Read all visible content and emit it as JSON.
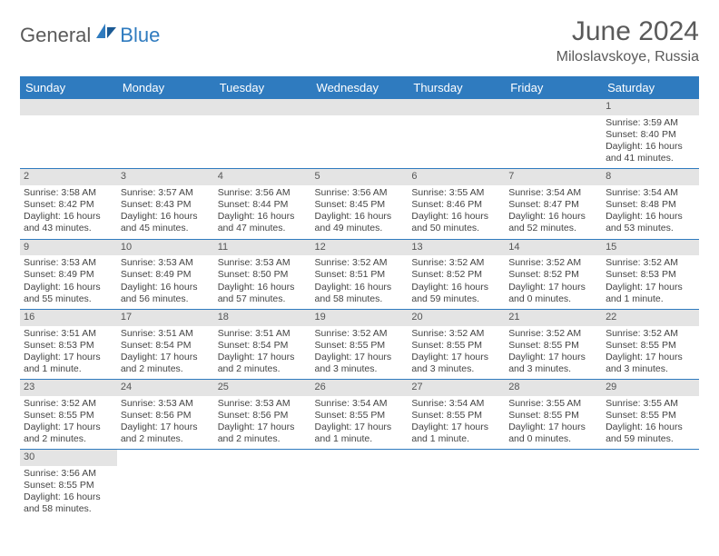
{
  "logo": {
    "part1": "General",
    "part2": "Blue"
  },
  "title": "June 2024",
  "location": "Miloslavskoye, Russia",
  "colors": {
    "header_bg": "#2f7bbf",
    "header_fg": "#ffffff",
    "daybar_bg": "#e4e4e4",
    "row_border": "#2f7bbf",
    "text": "#444444"
  },
  "weekdays": [
    "Sunday",
    "Monday",
    "Tuesday",
    "Wednesday",
    "Thursday",
    "Friday",
    "Saturday"
  ],
  "weeks": [
    [
      null,
      null,
      null,
      null,
      null,
      null,
      {
        "n": "1",
        "sr": "Sunrise: 3:59 AM",
        "ss": "Sunset: 8:40 PM",
        "dl": "Daylight: 16 hours and 41 minutes."
      }
    ],
    [
      {
        "n": "2",
        "sr": "Sunrise: 3:58 AM",
        "ss": "Sunset: 8:42 PM",
        "dl": "Daylight: 16 hours and 43 minutes."
      },
      {
        "n": "3",
        "sr": "Sunrise: 3:57 AM",
        "ss": "Sunset: 8:43 PM",
        "dl": "Daylight: 16 hours and 45 minutes."
      },
      {
        "n": "4",
        "sr": "Sunrise: 3:56 AM",
        "ss": "Sunset: 8:44 PM",
        "dl": "Daylight: 16 hours and 47 minutes."
      },
      {
        "n": "5",
        "sr": "Sunrise: 3:56 AM",
        "ss": "Sunset: 8:45 PM",
        "dl": "Daylight: 16 hours and 49 minutes."
      },
      {
        "n": "6",
        "sr": "Sunrise: 3:55 AM",
        "ss": "Sunset: 8:46 PM",
        "dl": "Daylight: 16 hours and 50 minutes."
      },
      {
        "n": "7",
        "sr": "Sunrise: 3:54 AM",
        "ss": "Sunset: 8:47 PM",
        "dl": "Daylight: 16 hours and 52 minutes."
      },
      {
        "n": "8",
        "sr": "Sunrise: 3:54 AM",
        "ss": "Sunset: 8:48 PM",
        "dl": "Daylight: 16 hours and 53 minutes."
      }
    ],
    [
      {
        "n": "9",
        "sr": "Sunrise: 3:53 AM",
        "ss": "Sunset: 8:49 PM",
        "dl": "Daylight: 16 hours and 55 minutes."
      },
      {
        "n": "10",
        "sr": "Sunrise: 3:53 AM",
        "ss": "Sunset: 8:49 PM",
        "dl": "Daylight: 16 hours and 56 minutes."
      },
      {
        "n": "11",
        "sr": "Sunrise: 3:53 AM",
        "ss": "Sunset: 8:50 PM",
        "dl": "Daylight: 16 hours and 57 minutes."
      },
      {
        "n": "12",
        "sr": "Sunrise: 3:52 AM",
        "ss": "Sunset: 8:51 PM",
        "dl": "Daylight: 16 hours and 58 minutes."
      },
      {
        "n": "13",
        "sr": "Sunrise: 3:52 AM",
        "ss": "Sunset: 8:52 PM",
        "dl": "Daylight: 16 hours and 59 minutes."
      },
      {
        "n": "14",
        "sr": "Sunrise: 3:52 AM",
        "ss": "Sunset: 8:52 PM",
        "dl": "Daylight: 17 hours and 0 minutes."
      },
      {
        "n": "15",
        "sr": "Sunrise: 3:52 AM",
        "ss": "Sunset: 8:53 PM",
        "dl": "Daylight: 17 hours and 1 minute."
      }
    ],
    [
      {
        "n": "16",
        "sr": "Sunrise: 3:51 AM",
        "ss": "Sunset: 8:53 PM",
        "dl": "Daylight: 17 hours and 1 minute."
      },
      {
        "n": "17",
        "sr": "Sunrise: 3:51 AM",
        "ss": "Sunset: 8:54 PM",
        "dl": "Daylight: 17 hours and 2 minutes."
      },
      {
        "n": "18",
        "sr": "Sunrise: 3:51 AM",
        "ss": "Sunset: 8:54 PM",
        "dl": "Daylight: 17 hours and 2 minutes."
      },
      {
        "n": "19",
        "sr": "Sunrise: 3:52 AM",
        "ss": "Sunset: 8:55 PM",
        "dl": "Daylight: 17 hours and 3 minutes."
      },
      {
        "n": "20",
        "sr": "Sunrise: 3:52 AM",
        "ss": "Sunset: 8:55 PM",
        "dl": "Daylight: 17 hours and 3 minutes."
      },
      {
        "n": "21",
        "sr": "Sunrise: 3:52 AM",
        "ss": "Sunset: 8:55 PM",
        "dl": "Daylight: 17 hours and 3 minutes."
      },
      {
        "n": "22",
        "sr": "Sunrise: 3:52 AM",
        "ss": "Sunset: 8:55 PM",
        "dl": "Daylight: 17 hours and 3 minutes."
      }
    ],
    [
      {
        "n": "23",
        "sr": "Sunrise: 3:52 AM",
        "ss": "Sunset: 8:55 PM",
        "dl": "Daylight: 17 hours and 2 minutes."
      },
      {
        "n": "24",
        "sr": "Sunrise: 3:53 AM",
        "ss": "Sunset: 8:56 PM",
        "dl": "Daylight: 17 hours and 2 minutes."
      },
      {
        "n": "25",
        "sr": "Sunrise: 3:53 AM",
        "ss": "Sunset: 8:56 PM",
        "dl": "Daylight: 17 hours and 2 minutes."
      },
      {
        "n": "26",
        "sr": "Sunrise: 3:54 AM",
        "ss": "Sunset: 8:55 PM",
        "dl": "Daylight: 17 hours and 1 minute."
      },
      {
        "n": "27",
        "sr": "Sunrise: 3:54 AM",
        "ss": "Sunset: 8:55 PM",
        "dl": "Daylight: 17 hours and 1 minute."
      },
      {
        "n": "28",
        "sr": "Sunrise: 3:55 AM",
        "ss": "Sunset: 8:55 PM",
        "dl": "Daylight: 17 hours and 0 minutes."
      },
      {
        "n": "29",
        "sr": "Sunrise: 3:55 AM",
        "ss": "Sunset: 8:55 PM",
        "dl": "Daylight: 16 hours and 59 minutes."
      }
    ],
    [
      {
        "n": "30",
        "sr": "Sunrise: 3:56 AM",
        "ss": "Sunset: 8:55 PM",
        "dl": "Daylight: 16 hours and 58 minutes."
      },
      null,
      null,
      null,
      null,
      null,
      null
    ]
  ]
}
